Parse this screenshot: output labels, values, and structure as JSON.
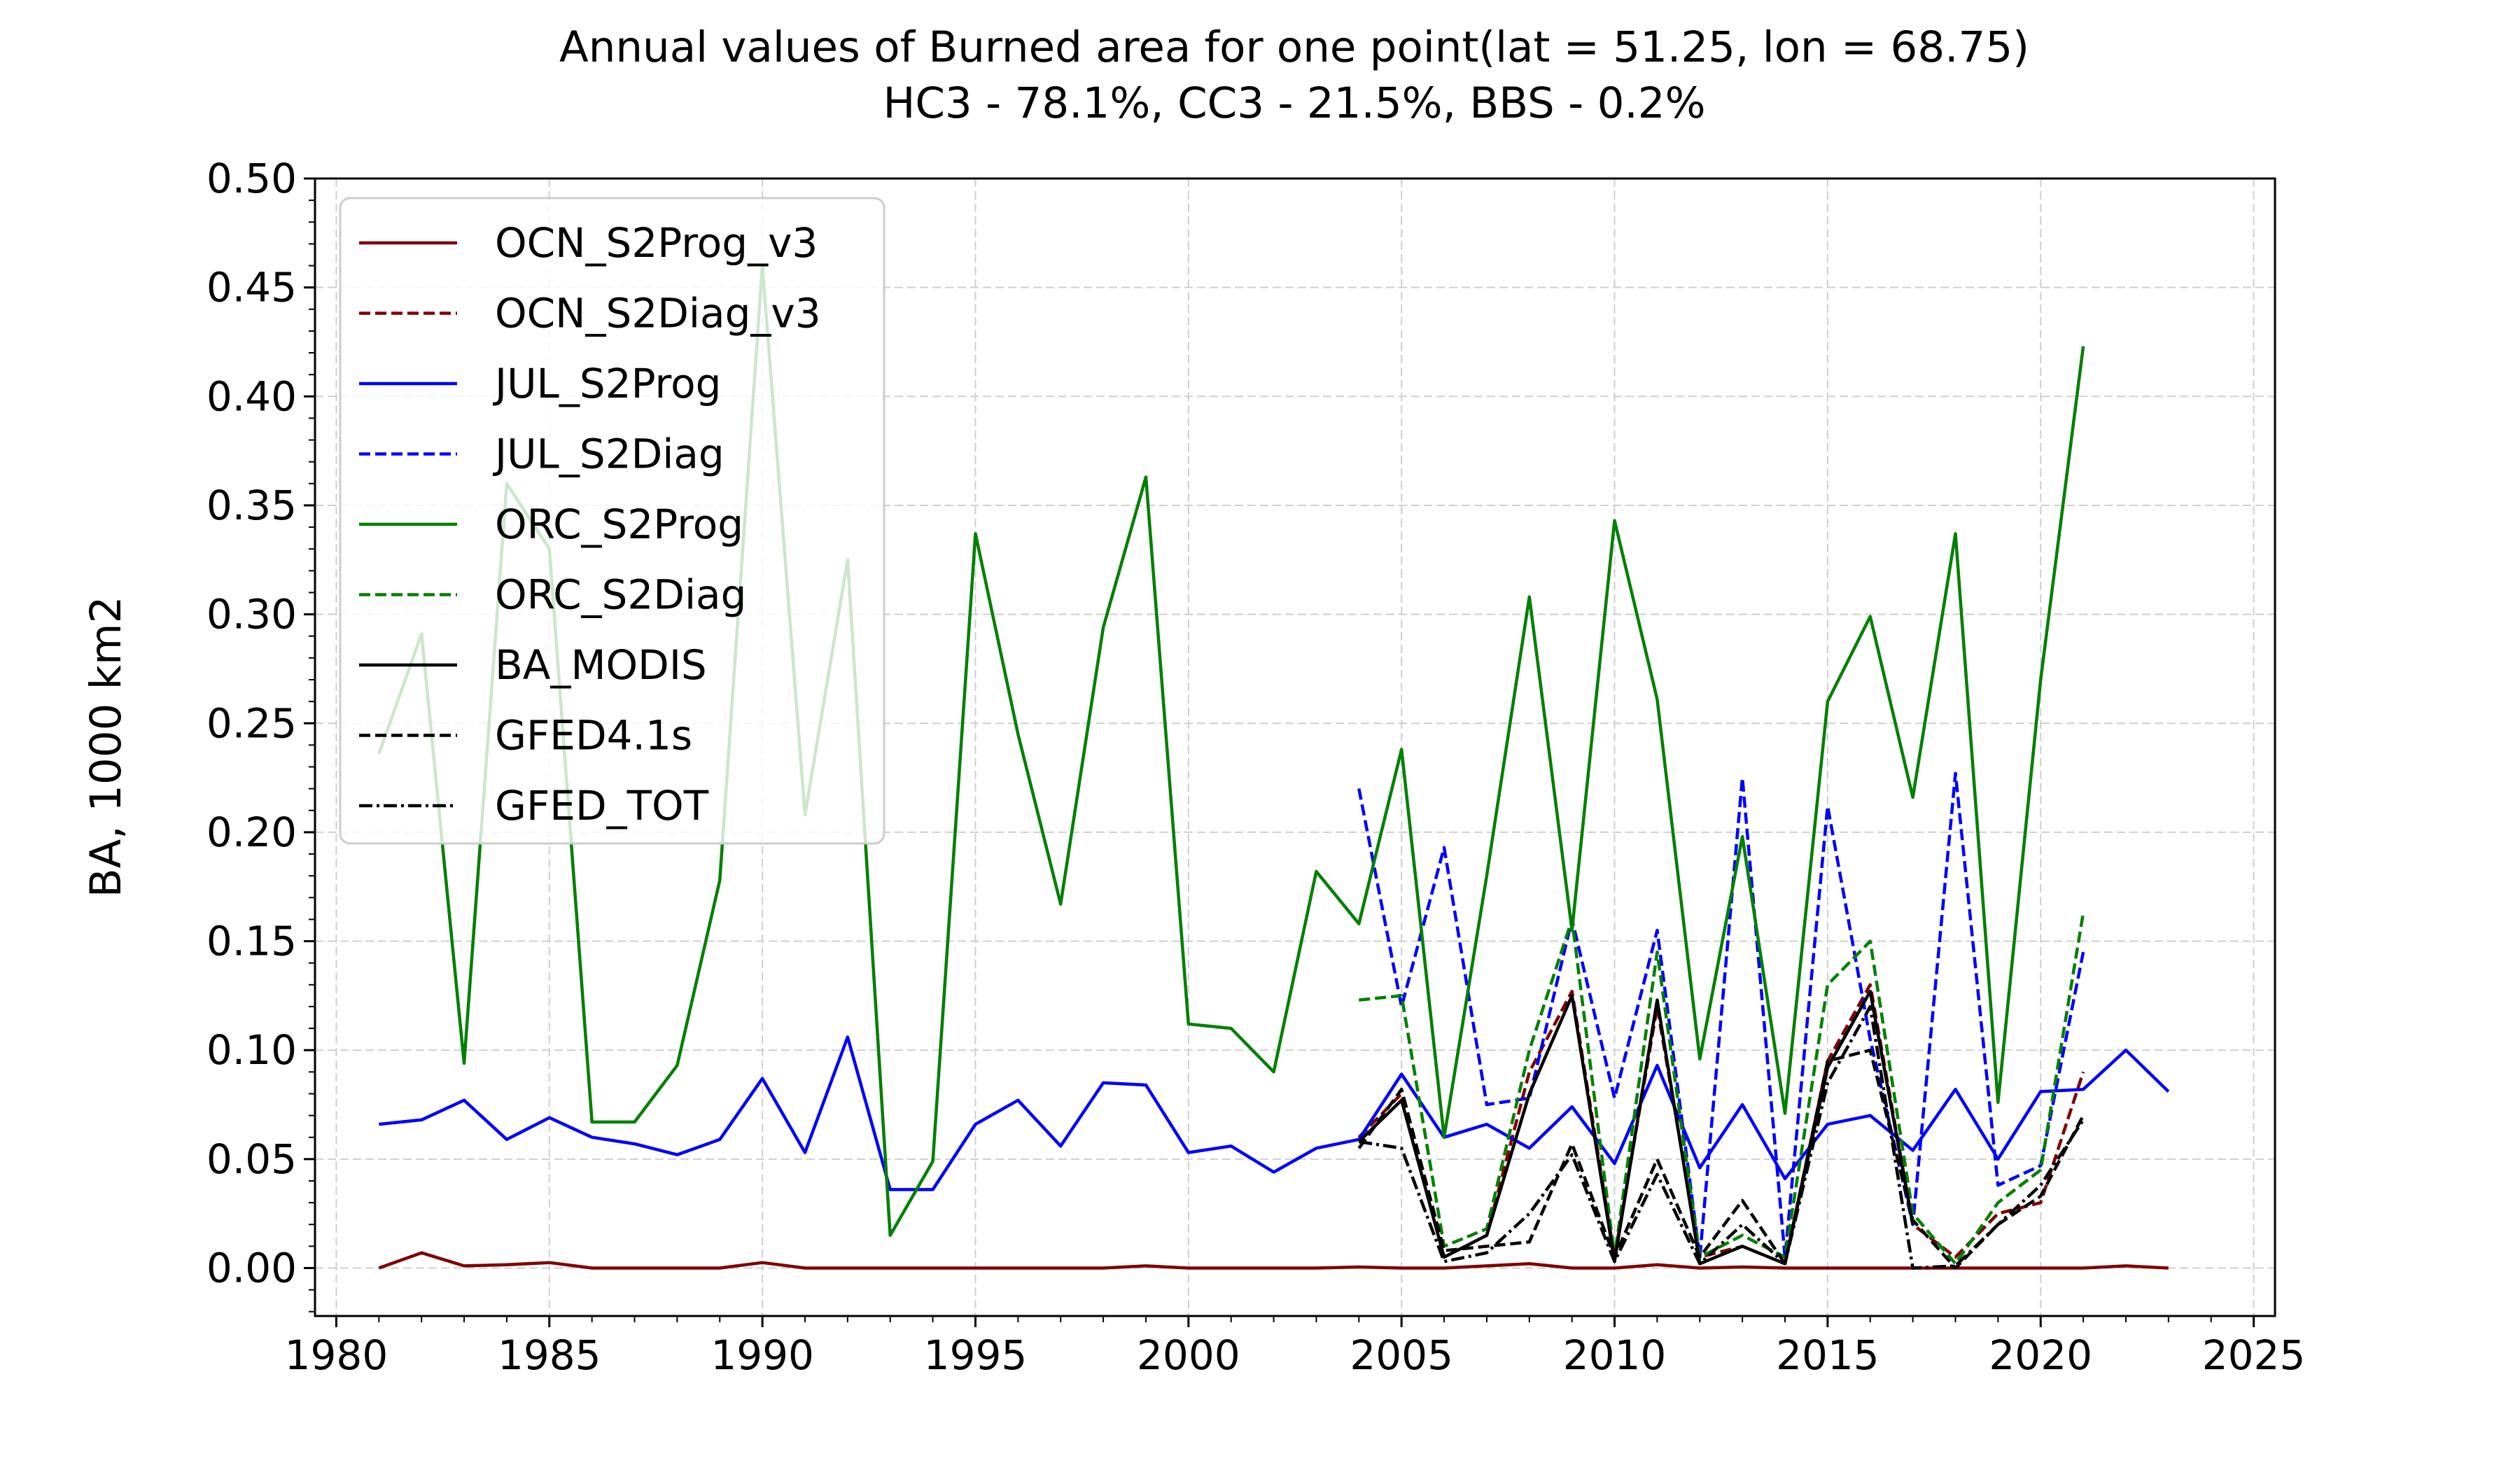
{
  "chart_data": {
    "type": "line",
    "title": "Annual values of Burned area for one point(lat = 51.25, lon = 68.75)",
    "subtitle": "HC3  - 78.1%, CC3  - 21.5%, BBS  -  0.2%",
    "xlabel": "",
    "ylabel": "BA, 1000 km2",
    "xlim": [
      1979.5,
      2025.5
    ],
    "ylim": [
      -0.022,
      0.5
    ],
    "xticks": [
      1980,
      1985,
      1990,
      1995,
      2000,
      2005,
      2010,
      2015,
      2020,
      2025
    ],
    "yticks": [
      0.0,
      0.05,
      0.1,
      0.15,
      0.2,
      0.25,
      0.3,
      0.35,
      0.4,
      0.45,
      0.5
    ],
    "xtick_labels": [
      "1980",
      "1985",
      "1990",
      "1995",
      "2000",
      "2005",
      "2010",
      "2015",
      "2020",
      "2025"
    ],
    "ytick_labels": [
      "0.00",
      "0.05",
      "0.10",
      "0.15",
      "0.20",
      "0.25",
      "0.30",
      "0.35",
      "0.40",
      "0.45",
      "0.50"
    ],
    "grid": true,
    "legend_position": "top-left",
    "series": [
      {
        "name": "OCN_S2Prog_v3",
        "color": "#800000",
        "style": "solid",
        "x": [
          1981,
          1982,
          1983,
          1984,
          1985,
          1986,
          1987,
          1988,
          1989,
          1990,
          1991,
          1992,
          1993,
          1994,
          1995,
          1996,
          1997,
          1998,
          1999,
          2000,
          2001,
          2002,
          2003,
          2004,
          2005,
          2006,
          2007,
          2008,
          2009,
          2010,
          2011,
          2012,
          2013,
          2014,
          2015,
          2016,
          2017,
          2018,
          2019,
          2020,
          2021,
          2022,
          2023
        ],
        "y": [
          0.0,
          0.007,
          0.001,
          0.0015,
          0.0025,
          0.0,
          0.0,
          0.0,
          0.0,
          0.0025,
          0.0,
          0.0,
          0.0,
          0.0,
          0.0,
          0.0,
          0.0,
          0.0,
          0.001,
          0.0,
          0.0,
          0.0,
          0.0,
          0.0005,
          0.0,
          0.0,
          0.001,
          0.002,
          0.0,
          0.0,
          0.0015,
          0.0,
          0.0005,
          0.0,
          0.0,
          0.0,
          0.0,
          0.0,
          0.0,
          0.0,
          0.0,
          0.001,
          0.0
        ]
      },
      {
        "name": "OCN_S2Diag_v3",
        "color": "#800000",
        "style": "dashed",
        "x": [
          2004,
          2005,
          2006,
          2007,
          2008,
          2009,
          2010,
          2011,
          2012,
          2013,
          2014,
          2015,
          2016,
          2017,
          2018,
          2019,
          2020,
          2021
        ],
        "y": [
          0.06,
          0.08,
          0.005,
          0.015,
          0.09,
          0.127,
          0.005,
          0.12,
          0.005,
          0.01,
          0.002,
          0.095,
          0.13,
          0.02,
          0.005,
          0.025,
          0.03,
          0.09
        ]
      },
      {
        "name": "JUL_S2Prog",
        "color": "#0000ff",
        "style": "solid",
        "x": [
          1981,
          1982,
          1983,
          1984,
          1985,
          1986,
          1987,
          1988,
          1989,
          1990,
          1991,
          1992,
          1993,
          1994,
          1995,
          1996,
          1997,
          1998,
          1999,
          2000,
          2001,
          2002,
          2003,
          2004,
          2005,
          2006,
          2007,
          2008,
          2009,
          2010,
          2011,
          2012,
          2013,
          2014,
          2015,
          2016,
          2017,
          2018,
          2019,
          2020,
          2021,
          2022,
          2023
        ],
        "y": [
          0.066,
          0.068,
          0.077,
          0.059,
          0.069,
          0.06,
          0.057,
          0.052,
          0.059,
          0.087,
          0.053,
          0.106,
          0.036,
          0.036,
          0.066,
          0.077,
          0.056,
          0.085,
          0.084,
          0.053,
          0.056,
          0.044,
          0.055,
          0.059,
          0.089,
          0.06,
          0.066,
          0.055,
          0.074,
          0.048,
          0.093,
          0.046,
          0.075,
          0.041,
          0.066,
          0.07,
          0.054,
          0.082,
          0.05,
          0.081,
          0.082,
          0.1,
          0.081
        ]
      },
      {
        "name": "JUL_S2Diag",
        "color": "#0000ff",
        "style": "dashed",
        "x": [
          2004,
          2005,
          2006,
          2007,
          2008,
          2009,
          2010,
          2011,
          2012,
          2013,
          2014,
          2015,
          2016,
          2017,
          2018,
          2019,
          2020,
          2021
        ],
        "y": [
          0.22,
          0.12,
          0.193,
          0.075,
          0.078,
          0.16,
          0.078,
          0.155,
          0.005,
          0.225,
          0.005,
          0.212,
          0.105,
          0.02,
          0.227,
          0.038,
          0.047,
          0.145
        ]
      },
      {
        "name": "ORC_S2Prog",
        "color": "#008000",
        "style": "solid",
        "x": [
          1981,
          1982,
          1983,
          1984,
          1985,
          1986,
          1987,
          1988,
          1989,
          1990,
          1991,
          1992,
          1993,
          1994,
          1995,
          1996,
          1997,
          1998,
          1999,
          2000,
          2001,
          2002,
          2003,
          2004,
          2005,
          2006,
          2007,
          2008,
          2009,
          2010,
          2011,
          2012,
          2013,
          2014,
          2015,
          2016,
          2017,
          2018,
          2019,
          2020,
          2021
        ],
        "y": [
          0.236,
          0.291,
          0.094,
          0.36,
          0.33,
          0.067,
          0.067,
          0.093,
          0.178,
          0.46,
          0.208,
          0.325,
          0.015,
          0.049,
          0.337,
          0.245,
          0.167,
          0.294,
          0.363,
          0.112,
          0.11,
          0.09,
          0.182,
          0.158,
          0.238,
          0.06,
          0.18,
          0.308,
          0.155,
          0.343,
          0.261,
          0.096,
          0.198,
          0.071,
          0.26,
          0.299,
          0.216,
          0.337,
          0.076,
          0.27,
          0.423
        ]
      },
      {
        "name": "ORC_S2Diag",
        "color": "#008000",
        "style": "dashed",
        "x": [
          2004,
          2005,
          2006,
          2007,
          2008,
          2009,
          2010,
          2011,
          2012,
          2013,
          2014,
          2015,
          2016,
          2017,
          2018,
          2019,
          2020,
          2021
        ],
        "y": [
          0.123,
          0.125,
          0.01,
          0.018,
          0.1,
          0.16,
          0.005,
          0.145,
          0.005,
          0.015,
          0.005,
          0.13,
          0.15,
          0.025,
          0.002,
          0.03,
          0.045,
          0.163
        ]
      },
      {
        "name": "BA_MODIS",
        "color": "#000000",
        "style": "solid",
        "x": [
          2004,
          2005,
          2006,
          2007,
          2008,
          2009,
          2010,
          2011,
          2012,
          2013,
          2014,
          2015,
          2016,
          2017
        ],
        "y": [
          0.058,
          0.077,
          0.005,
          0.015,
          0.08,
          0.125,
          0.003,
          0.123,
          0.002,
          0.01,
          0.002,
          0.092,
          0.127,
          0.02
        ]
      },
      {
        "name": "GFED4.1s",
        "color": "#000000",
        "style": "dashed",
        "x": [
          2004,
          2005,
          2006,
          2007,
          2008,
          2009,
          2010,
          2011,
          2012,
          2013,
          2014,
          2015,
          2016,
          2017,
          2018,
          2019,
          2020,
          2021
        ],
        "y": [
          0.055,
          0.082,
          0.008,
          0.01,
          0.012,
          0.057,
          0.005,
          0.05,
          0.005,
          0.031,
          0.002,
          0.095,
          0.1,
          0.022,
          0.0,
          0.02,
          0.033,
          0.07
        ]
      },
      {
        "name": "GFED_TOT",
        "color": "#000000",
        "style": "dashdot",
        "x": [
          2004,
          2005,
          2006,
          2007,
          2008,
          2009,
          2010,
          2011,
          2012,
          2013,
          2014,
          2015,
          2016,
          2017,
          2018,
          2019,
          2020,
          2021
        ],
        "y": [
          0.058,
          0.055,
          0.003,
          0.007,
          0.025,
          0.052,
          0.003,
          0.043,
          0.002,
          0.02,
          0.002,
          0.085,
          0.12,
          0.0,
          0.001,
          0.02,
          0.038,
          0.068
        ]
      }
    ]
  }
}
